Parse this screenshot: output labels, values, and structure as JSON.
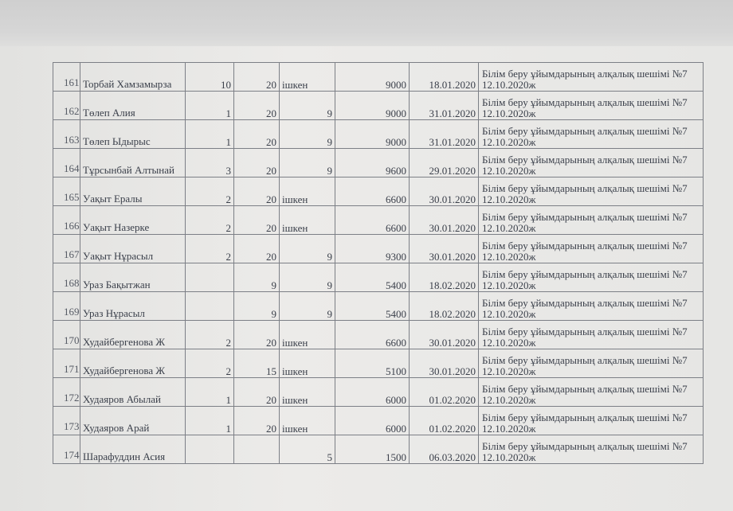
{
  "table": {
    "rows": [
      {
        "no": "161",
        "name": "Торбай Хамзамырза",
        "c3": "10",
        "c4": "20",
        "c5": "ішкен",
        "amount": "9000",
        "date": "18.01.2020",
        "basis": "Білім беру ұйымдарының алқалық шешімі №7 12.10.2020ж"
      },
      {
        "no": "162",
        "name": "Төлеп Алия",
        "c3": "1",
        "c4": "20",
        "c5": "9",
        "amount": "9000",
        "date": "31.01.2020",
        "basis": "Білім беру ұйымдарының алқалық шешімі №7 12.10.2020ж"
      },
      {
        "no": "163",
        "name": "Төлеп Ыдырыс",
        "c3": "1",
        "c4": "20",
        "c5": "9",
        "amount": "9000",
        "date": "31.01.2020",
        "basis": "Білім беру ұйымдарының алқалық шешімі №7 12.10.2020ж"
      },
      {
        "no": "164",
        "name": "Тұрсынбай Алтынай",
        "c3": "3",
        "c4": "20",
        "c5": "9",
        "amount": "9600",
        "date": "29.01.2020",
        "basis": "Білім беру ұйымдарының алқалық шешімі №7 12.10.2020ж"
      },
      {
        "no": "165",
        "name": "Уақыт Ералы",
        "c3": "2",
        "c4": "20",
        "c5": "ішкен",
        "amount": "6600",
        "date": "30.01.2020",
        "basis": "Білім беру ұйымдарының алқалық шешімі №7 12.10.2020ж"
      },
      {
        "no": "166",
        "name": "Уақыт Назерке",
        "c3": "2",
        "c4": "20",
        "c5": "ішкен",
        "amount": "6600",
        "date": "30.01.2020",
        "basis": "Білім беру ұйымдарының алқалық шешімі №7 12.10.2020ж"
      },
      {
        "no": "167",
        "name": "Уақыт Нұрасыл",
        "c3": "2",
        "c4": "20",
        "c5": "9",
        "amount": "9300",
        "date": "30.01.2020",
        "basis": "Білім беру ұйымдарының алқалық шешімі №7 12.10.2020ж"
      },
      {
        "no": "168",
        "name": "Ураз Бақытжан",
        "c3": "",
        "c4": "9",
        "c5": "9",
        "amount": "5400",
        "date": "18.02.2020",
        "basis": "Білім беру ұйымдарының алқалық шешімі №7 12.10.2020ж"
      },
      {
        "no": "169",
        "name": "Ураз Нұрасыл",
        "c3": "",
        "c4": "9",
        "c5": "9",
        "amount": "5400",
        "date": "18.02.2020",
        "basis": "Білім беру ұйымдарының алқалық шешімі №7 12.10.2020ж"
      },
      {
        "no": "170",
        "name": "Худайбергенова Ж",
        "c3": "2",
        "c4": "20",
        "c5": "ішкен",
        "amount": "6600",
        "date": "30.01.2020",
        "basis": "Білім беру ұйымдарының алқалық шешімі №7 12.10.2020ж"
      },
      {
        "no": "171",
        "name": "Худайбергенова Ж",
        "c3": "2",
        "c4": "15",
        "c5": "ішкен",
        "amount": "5100",
        "date": "30.01.2020",
        "basis": "Білім беру ұйымдарының алқалық шешімі №7 12.10.2020ж"
      },
      {
        "no": "172",
        "name": "Худаяров Абылай",
        "c3": "1",
        "c4": "20",
        "c5": "ішкен",
        "amount": "6000",
        "date": "01.02.2020",
        "basis": "Білім беру ұйымдарының алқалық шешімі №7 12.10.2020ж"
      },
      {
        "no": "173",
        "name": "Худаяров Арай",
        "c3": "1",
        "c4": "20",
        "c5": "ішкен",
        "amount": "6000",
        "date": "01.02.2020",
        "basis": "Білім беру ұйымдарының алқалық шешімі №7 12.10.2020ж"
      },
      {
        "no": "174",
        "name": "Шарафуддин Асия",
        "c3": "",
        "c4": "",
        "c5": "5",
        "amount": "1500",
        "date": "06.03.2020",
        "basis": "Білім беру ұйымдарының алқалық шешімі №7 12.10.2020ж"
      }
    ]
  }
}
